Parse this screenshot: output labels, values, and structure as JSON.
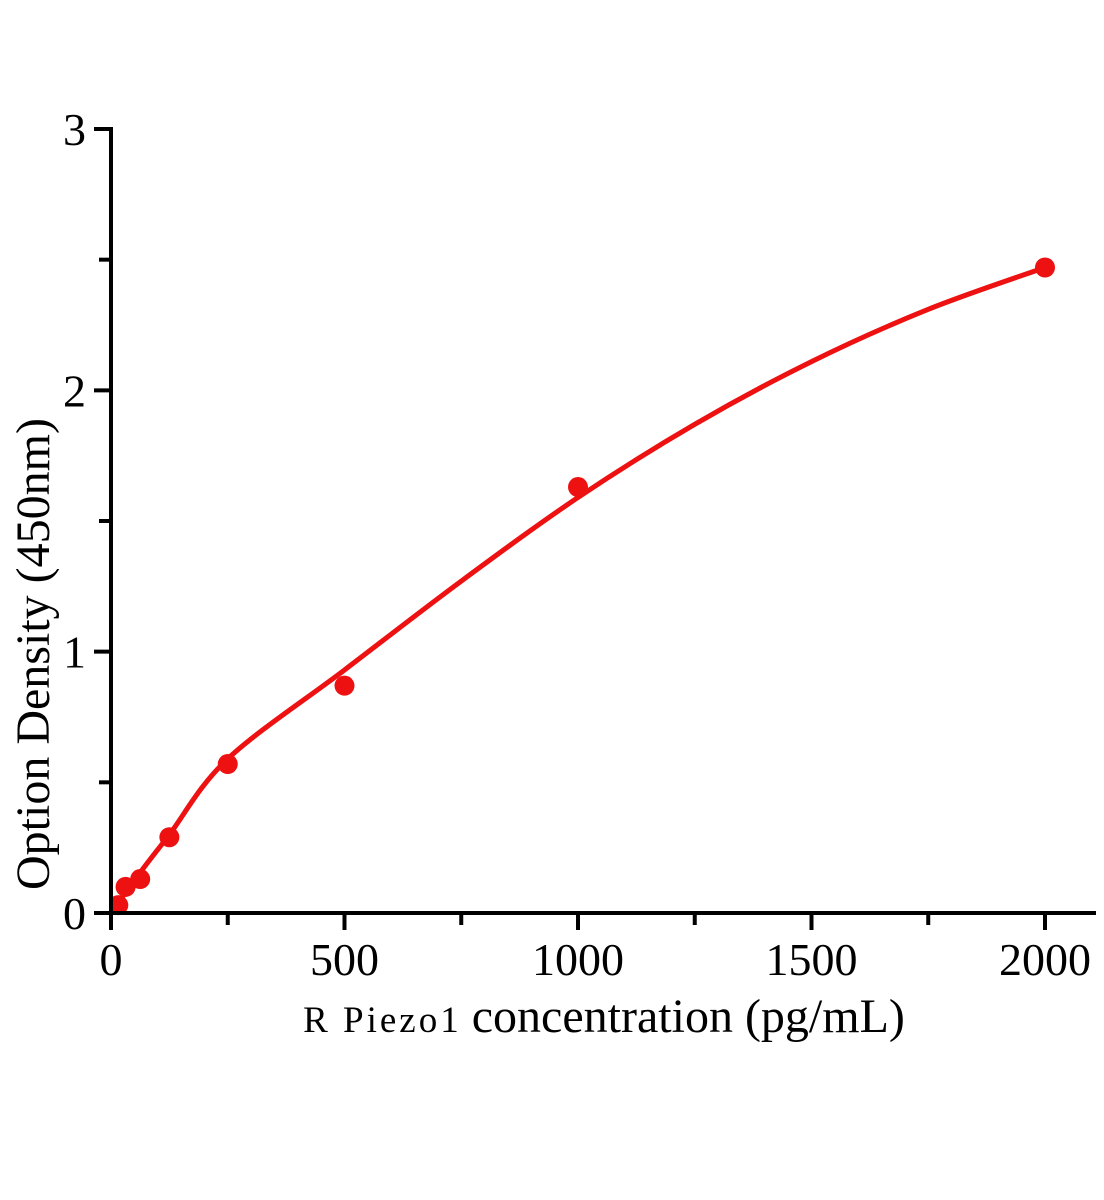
{
  "figure": {
    "background_color": "#ffffff",
    "text_color": "#000000"
  },
  "chart_data": {
    "type": "scatter",
    "title": "",
    "xlabel": "R Piezo1 concentration（pg/mL）",
    "xlabel_prefix": "R Piezo1",
    "xlabel_main": "concentration（pg/mL）",
    "ylabel": "Option Density（450nm）",
    "xlim": [
      0,
      2110
    ],
    "ylim": [
      0,
      3
    ],
    "x_ticks": [
      0,
      500,
      1000,
      1500,
      2000
    ],
    "x_minor_ticks": [
      250,
      750,
      1250,
      1750
    ],
    "y_ticks": [
      0,
      1,
      2,
      3
    ],
    "y_minor_ticks": [
      0.5,
      1.5,
      2.5
    ],
    "grid": false,
    "legend_position": "none",
    "points": {
      "x": [
        15.6,
        31.25,
        62.5,
        125,
        250,
        500,
        1000,
        2000
      ],
      "y": [
        0.03,
        0.1,
        0.13,
        0.29,
        0.57,
        0.87,
        1.63,
        2.47
      ]
    },
    "fit_curve": {
      "x": [
        0,
        62.5,
        125,
        250,
        500,
        750,
        1000,
        1250,
        1500,
        1750,
        2000
      ],
      "y": [
        0.0,
        0.155,
        0.3,
        0.59,
        0.93,
        1.27,
        1.59,
        1.87,
        2.11,
        2.31,
        2.47
      ]
    },
    "marker_radius": 10,
    "colors": {
      "series": "#ee1111",
      "axis": "#000000"
    }
  }
}
